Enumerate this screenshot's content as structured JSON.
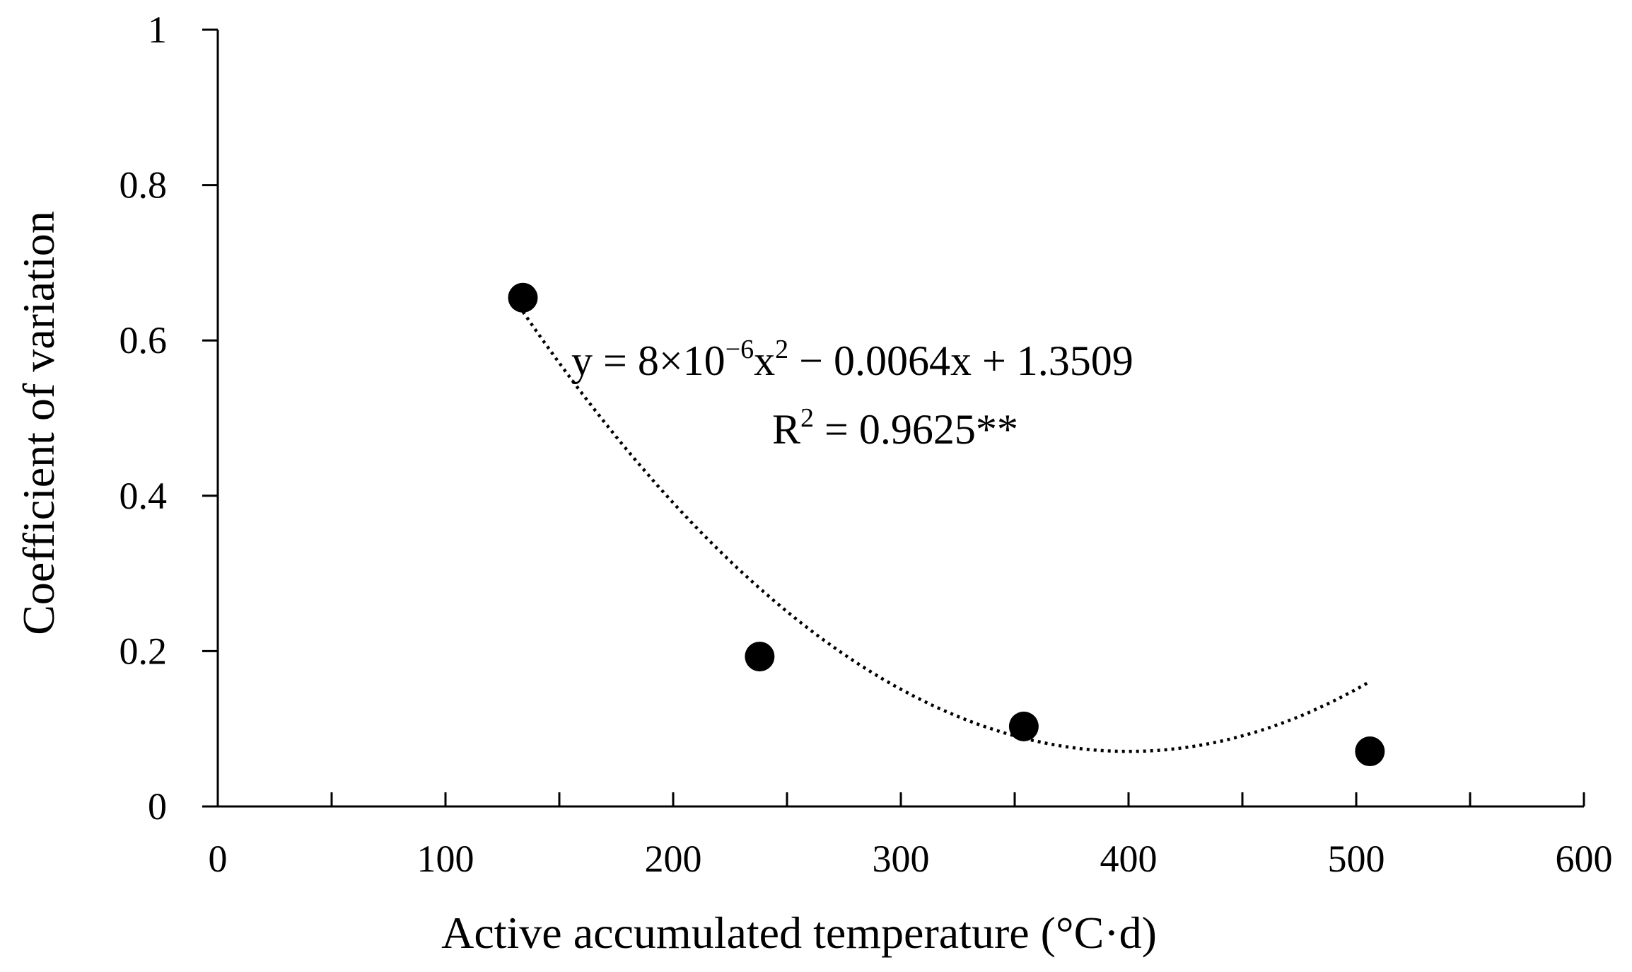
{
  "chart_data": {
    "type": "scatter",
    "title": "",
    "xlabel": "Active accumulated temperature (°C·d)",
    "ylabel": "Coefficient of variation",
    "xlim": [
      0,
      600
    ],
    "ylim": [
      0,
      1
    ],
    "x_ticks": [
      0,
      100,
      200,
      300,
      400,
      500,
      600
    ],
    "x_tick_labels": [
      "0",
      "100",
      "200",
      "300",
      "400",
      "500",
      "600"
    ],
    "y_ticks": [
      0,
      0.2,
      0.4,
      0.6,
      0.8,
      1
    ],
    "y_tick_labels": [
      "0",
      "0.2",
      "0.4",
      "0.6",
      "0.8",
      "1"
    ],
    "grid": false,
    "legend": "none",
    "points": [
      {
        "x": 134,
        "y": 0.655
      },
      {
        "x": 238,
        "y": 0.193
      },
      {
        "x": 354,
        "y": 0.103
      },
      {
        "x": 506,
        "y": 0.071
      }
    ],
    "trendline": {
      "type": "polynomial",
      "style": "dotted",
      "a": 8e-06,
      "b": -0.0064,
      "c": 1.3509,
      "x_range": [
        134,
        506
      ]
    },
    "annotations": {
      "equation_prefix": "y = 8×10",
      "equation_exp": "−6",
      "equation_mid": "x",
      "equation_sq": "2",
      "equation_suffix": " − 0.0064x + 1.3509",
      "r2_prefix": "R",
      "r2_sq": "2",
      "r2_suffix": " = 0.9625**"
    }
  }
}
